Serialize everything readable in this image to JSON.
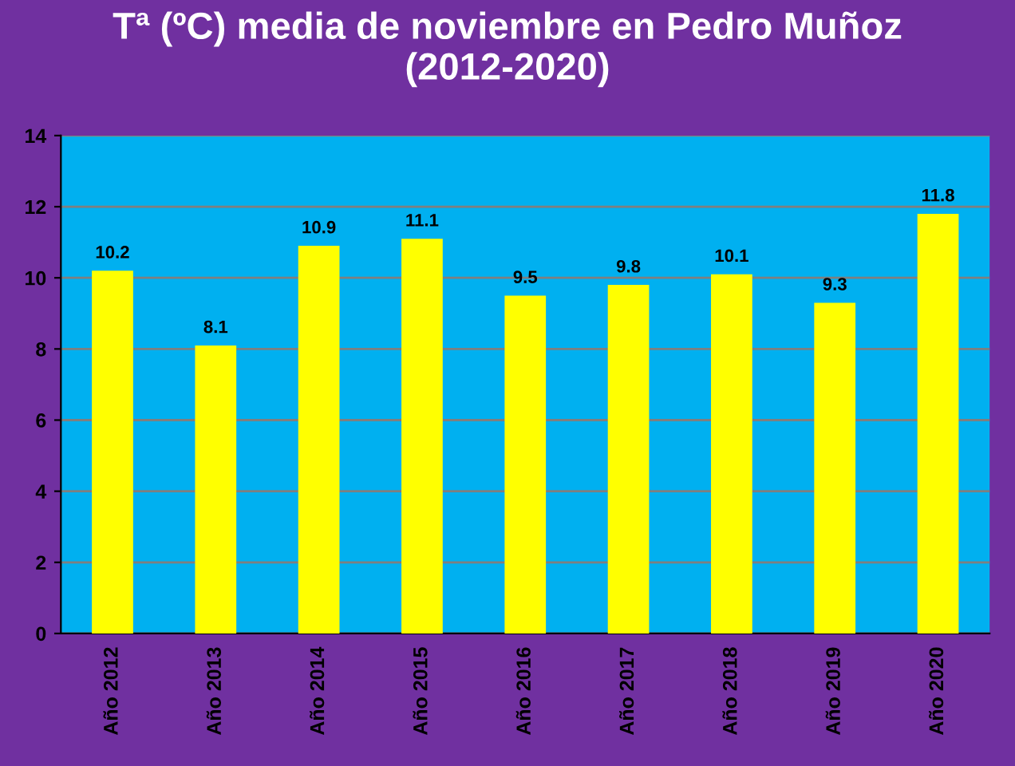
{
  "chart_data": {
    "type": "bar",
    "title": "Tª (ºC) media de noviembre en Pedro Muñoz\n(2012-2020)",
    "categories": [
      "Año 2012",
      "Año 2013",
      "Año 2014",
      "Año 2015",
      "Año 2016",
      "Año 2017",
      "Año 2018",
      "Año 2019",
      "Año 2020"
    ],
    "values": [
      10.2,
      8.1,
      10.9,
      11.1,
      9.5,
      9.8,
      10.1,
      9.3,
      11.8
    ],
    "color": "#ffff00",
    "ylim": [
      0,
      14
    ],
    "yticks": [
      0,
      2,
      4,
      6,
      8,
      10,
      12,
      14
    ],
    "grid": "y",
    "data_labels": true,
    "legend": false
  }
}
